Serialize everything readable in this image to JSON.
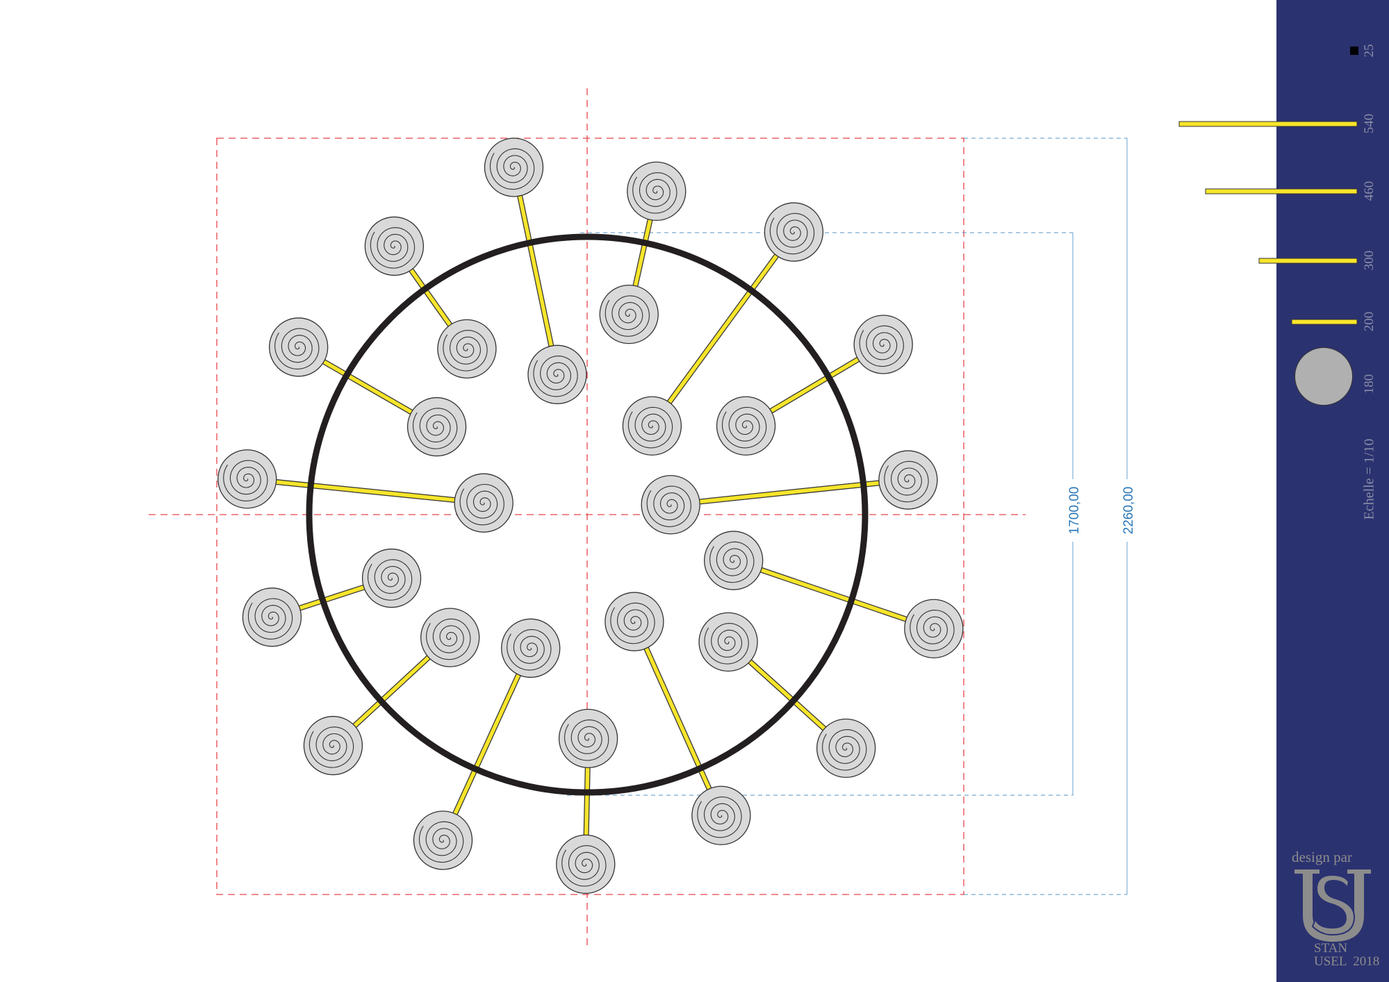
{
  "colors": {
    "sidebar": "#2b3270",
    "stick": "#f7e52b",
    "disk": "#d9d9d9",
    "legend_disk": "#b0b0b0",
    "ring": "#231f20",
    "construction_line": "#e8454a",
    "dimension_line": "#2a78b8",
    "label": "#8a8fa8",
    "logo": "#8c8c8c"
  },
  "dimensions": {
    "inner": "1700,00",
    "outer": "2260,00"
  },
  "legend": {
    "items": [
      {
        "label": "25",
        "shape": "square"
      },
      {
        "label": "540",
        "shape": "bar"
      },
      {
        "label": "460",
        "shape": "bar"
      },
      {
        "label": "300",
        "shape": "bar"
      },
      {
        "label": "200",
        "shape": "bar"
      },
      {
        "label": "180",
        "shape": "disk"
      }
    ],
    "scale": "Echelle = 1/10"
  },
  "logo": {
    "prefix": "design par",
    "monogram": "US",
    "line1": "STAN",
    "line2": "USEL  2018"
  }
}
